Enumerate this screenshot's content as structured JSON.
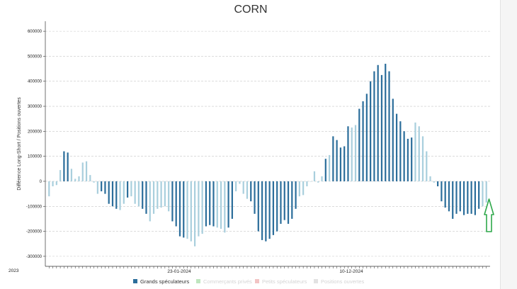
{
  "chart_data": {
    "type": "bar",
    "title": "CORN",
    "ylabel": "Différence Long-Short / Positions ouvertes",
    "ylim": [
      -340000,
      640000
    ],
    "yticks": [
      600000,
      500000,
      400000,
      300000,
      200000,
      100000,
      0,
      -100000,
      -200000,
      -300000
    ],
    "xlabels": {
      "start": "2023",
      "mid1": "23-01-2024",
      "mid2": "10-12-2024"
    },
    "grid": true,
    "legend_position": "bottom",
    "series_colors": {
      "dark": "#2c6e9b",
      "light": "#a9cfdd"
    },
    "legend": [
      {
        "label": "Grands spéculateurs",
        "color": "#2c6e9b",
        "active": true
      },
      {
        "label": "Commerçants privés",
        "color": "#bfe5bf",
        "active": false
      },
      {
        "label": "Petits spéculateurs",
        "color": "#f2c4c4",
        "active": false
      },
      {
        "label": "Positions ouvertes",
        "color": "#e2e2e2",
        "active": false
      }
    ],
    "series": [
      {
        "name": "Grands spéculateurs",
        "values": [
          -60000,
          -20000,
          -15000,
          45000,
          120000,
          115000,
          50000,
          10000,
          20000,
          75000,
          80000,
          25000,
          -5000,
          -50000,
          -40000,
          -50000,
          -90000,
          -100000,
          -110000,
          -115000,
          -90000,
          -65000,
          -60000,
          -90000,
          -100000,
          -110000,
          -130000,
          -160000,
          -130000,
          -110000,
          -105000,
          -100000,
          -120000,
          -160000,
          -180000,
          -220000,
          -225000,
          -230000,
          -240000,
          -260000,
          -220000,
          -210000,
          -180000,
          -175000,
          -180000,
          -185000,
          -190000,
          -205000,
          -185000,
          -150000,
          -40000,
          -10000,
          -50000,
          -70000,
          -80000,
          -130000,
          -200000,
          -235000,
          -240000,
          -230000,
          -215000,
          -200000,
          -170000,
          -155000,
          -170000,
          -150000,
          -110000,
          -60000,
          -55000,
          -20000,
          0,
          40000,
          -5000,
          20000,
          90000,
          105000,
          180000,
          165000,
          135000,
          140000,
          220000,
          215000,
          225000,
          290000,
          320000,
          350000,
          400000,
          440000,
          465000,
          425000,
          470000,
          440000,
          330000,
          270000,
          240000,
          200000,
          170000,
          175000,
          235000,
          220000,
          180000,
          120000,
          20000,
          -5000,
          -20000,
          -80000,
          -105000,
          -120000,
          -150000,
          -130000,
          -120000,
          -135000,
          -130000,
          -130000,
          -135000,
          -110000,
          -100000,
          -85000
        ],
        "highlight_indices": [
          4,
          5,
          14,
          15,
          16,
          17,
          18,
          21,
          25,
          26,
          33,
          34,
          35,
          36,
          42,
          43,
          44,
          48,
          49,
          54,
          55,
          56,
          57,
          58,
          59,
          60,
          61,
          62,
          63,
          64,
          65,
          66,
          74,
          76,
          77,
          78,
          79,
          80,
          83,
          84,
          85,
          86,
          87,
          88,
          89,
          90,
          91,
          92,
          93,
          94,
          95,
          96,
          97,
          104,
          105,
          106,
          107,
          108,
          109,
          110,
          111,
          112,
          113,
          114,
          115
        ]
      }
    ]
  },
  "annotation_icon": "up-arrow-icon"
}
